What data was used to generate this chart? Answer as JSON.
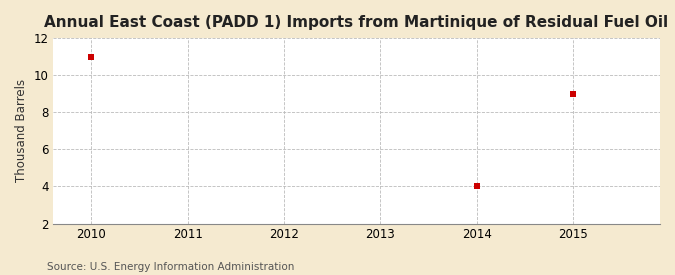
{
  "title": "Annual East Coast (PADD 1) Imports from Martinique of Residual Fuel Oil",
  "ylabel": "Thousand Barrels",
  "source": "Source: U.S. Energy Information Administration",
  "x_data": [
    2010,
    2014,
    2015
  ],
  "y_data": [
    11,
    4,
    9
  ],
  "marker_color": "#cc0000",
  "marker_style": "s",
  "marker_size": 4,
  "xlim": [
    2009.6,
    2015.9
  ],
  "ylim": [
    2,
    12
  ],
  "yticks": [
    2,
    4,
    6,
    8,
    10,
    12
  ],
  "xticks": [
    2010,
    2011,
    2012,
    2013,
    2014,
    2015
  ],
  "outer_background": "#f5ead0",
  "plot_background": "#ffffff",
  "grid_color": "#bbbbbb",
  "title_fontsize": 11,
  "label_fontsize": 8.5,
  "tick_fontsize": 8.5,
  "source_fontsize": 7.5
}
